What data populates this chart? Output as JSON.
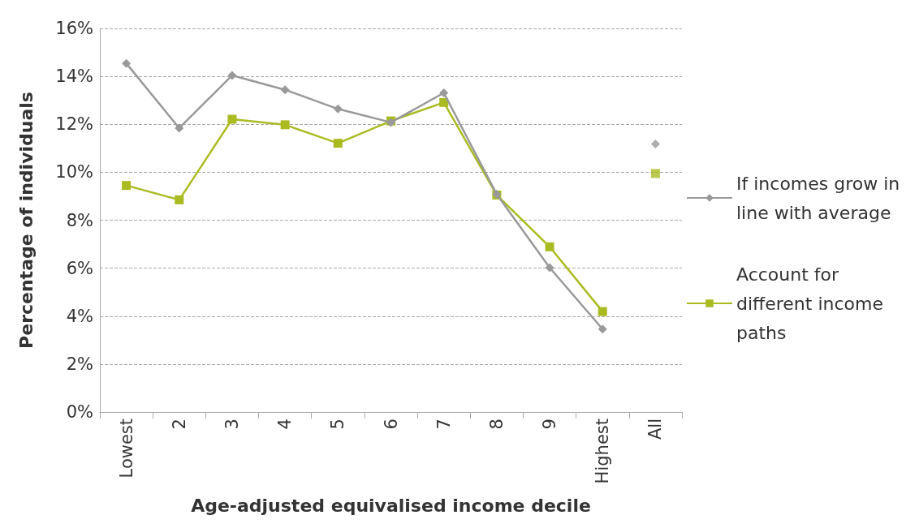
{
  "chart_data": {
    "type": "line",
    "xlabel": "Age-adjusted equivalised income decile",
    "ylabel": "Percentage of individuals",
    "categories": [
      "Lowest",
      "2",
      "3",
      "4",
      "5",
      "6",
      "7",
      "8",
      "9",
      "Highest",
      "All"
    ],
    "series": [
      {
        "name": "If incomes grow in line with average",
        "color": "#999999",
        "marker": "diamond",
        "values": [
          14.54,
          11.84,
          14.04,
          13.44,
          12.64,
          12.08,
          13.31,
          9.08,
          6.02,
          3.46,
          null
        ]
      },
      {
        "name": "Account for different income paths",
        "color": "#aabb22",
        "marker": "square",
        "values": [
          9.45,
          8.85,
          12.21,
          11.98,
          11.21,
          12.14,
          12.91,
          9.05,
          6.89,
          4.19,
          null
        ]
      },
      {
        "type": "scatter",
        "color": "#999999",
        "marker": "diamond",
        "x": [
          "All"
        ],
        "values": [
          11.18
        ]
      },
      {
        "type": "scatter",
        "color": "#aabb22",
        "marker": "square",
        "x": [
          "All"
        ],
        "values": [
          9.95
        ]
      }
    ],
    "ylim": [
      0,
      16
    ],
    "yticks": [
      {
        "value": 0,
        "label": "0%"
      },
      {
        "value": 2,
        "label": "2%"
      },
      {
        "value": 4,
        "label": "4%"
      },
      {
        "value": 6,
        "label": "6%"
      },
      {
        "value": 8,
        "label": "8%"
      },
      {
        "value": 10,
        "label": "10%"
      },
      {
        "value": 12,
        "label": "12%"
      },
      {
        "value": 14,
        "label": "14%"
      },
      {
        "value": 16,
        "label": "16%"
      }
    ],
    "grid": "y",
    "legend": "right"
  }
}
